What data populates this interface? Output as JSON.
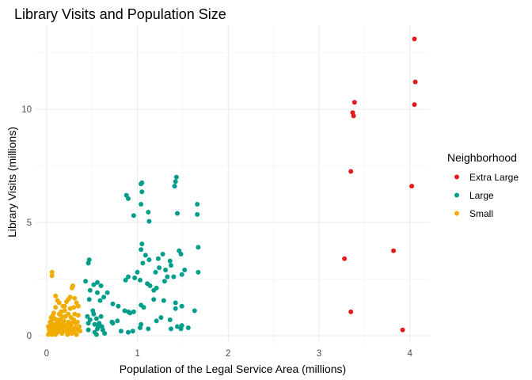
{
  "chart_data": {
    "type": "scatter",
    "title": "Library Visits and Population Size",
    "xlabel": "Population of the Legal Service Area (millions)",
    "ylabel": "Library Visits (millions)",
    "xlim": [
      -0.12,
      4.22
    ],
    "ylim": [
      -0.35,
      13.7
    ],
    "x_ticks": [
      0,
      1,
      2,
      3,
      4
    ],
    "x_tick_labels": [
      "0",
      "1",
      "2",
      "3",
      "4"
    ],
    "y_ticks": [
      0,
      5,
      10
    ],
    "y_tick_labels": [
      "0",
      "5",
      "10"
    ],
    "grid": true,
    "legend": {
      "title": "Neighborhood",
      "position": "right"
    },
    "series": [
      {
        "name": "Extra Large",
        "color": "#e41a1c",
        "points": [
          [
            4.05,
            13.1
          ],
          [
            4.06,
            11.2
          ],
          [
            4.05,
            10.2
          ],
          [
            3.39,
            10.3
          ],
          [
            3.37,
            9.85
          ],
          [
            3.38,
            9.7
          ],
          [
            3.35,
            7.25
          ],
          [
            4.02,
            6.6
          ],
          [
            3.28,
            3.4
          ],
          [
            3.82,
            3.75
          ],
          [
            3.35,
            1.05
          ],
          [
            3.92,
            0.25
          ]
        ]
      },
      {
        "name": "Large",
        "color": "#009e8a",
        "points": [
          [
            1.05,
            6.75
          ],
          [
            1.04,
            6.7
          ],
          [
            1.05,
            6.35
          ],
          [
            0.88,
            6.2
          ],
          [
            0.9,
            6.05
          ],
          [
            1.04,
            5.8
          ],
          [
            1.43,
            7.0
          ],
          [
            1.42,
            6.8
          ],
          [
            1.41,
            6.6
          ],
          [
            1.44,
            5.4
          ],
          [
            1.66,
            5.8
          ],
          [
            1.66,
            5.35
          ],
          [
            1.12,
            5.45
          ],
          [
            1.13,
            5.05
          ],
          [
            0.96,
            5.3
          ],
          [
            0.47,
            3.35
          ],
          [
            0.46,
            3.2
          ],
          [
            1.05,
            4.05
          ],
          [
            1.04,
            3.8
          ],
          [
            1.09,
            3.55
          ],
          [
            1.13,
            3.35
          ],
          [
            1.06,
            3.2
          ],
          [
            1.23,
            3.4
          ],
          [
            1.28,
            3.6
          ],
          [
            1.36,
            3.3
          ],
          [
            1.46,
            3.75
          ],
          [
            1.48,
            3.6
          ],
          [
            1.37,
            3.1
          ],
          [
            1.67,
            3.9
          ],
          [
            1.67,
            2.8
          ],
          [
            1.52,
            2.9
          ],
          [
            1.49,
            2.7
          ],
          [
            1.4,
            2.6
          ],
          [
            1.31,
            2.9
          ],
          [
            1.3,
            2.4
          ],
          [
            1.2,
            2.8
          ],
          [
            1.0,
            2.8
          ],
          [
            0.97,
            2.55
          ],
          [
            0.87,
            2.45
          ],
          [
            1.03,
            2.45
          ],
          [
            1.11,
            2.3
          ],
          [
            1.14,
            2.2
          ],
          [
            0.43,
            2.4
          ],
          [
            0.52,
            2.25
          ],
          [
            0.56,
            2.35
          ],
          [
            0.6,
            2.2
          ],
          [
            0.48,
            2.0
          ],
          [
            0.56,
            1.9
          ],
          [
            0.63,
            1.7
          ],
          [
            0.47,
            1.6
          ],
          [
            0.59,
            1.55
          ],
          [
            0.73,
            1.4
          ],
          [
            0.79,
            1.3
          ],
          [
            0.9,
            1.05
          ],
          [
            0.92,
            1.0
          ],
          [
            0.96,
            1.05
          ],
          [
            1.04,
            1.35
          ],
          [
            1.07,
            1.25
          ],
          [
            1.18,
            1.6
          ],
          [
            1.29,
            1.55
          ],
          [
            1.42,
            1.45
          ],
          [
            1.42,
            1.2
          ],
          [
            1.49,
            1.3
          ],
          [
            1.63,
            1.1
          ],
          [
            0.51,
            1.1
          ],
          [
            0.52,
            0.95
          ],
          [
            0.45,
            0.85
          ],
          [
            0.46,
            0.55
          ],
          [
            0.53,
            0.5
          ],
          [
            0.57,
            0.4
          ],
          [
            0.61,
            0.4
          ],
          [
            0.46,
            0.25
          ],
          [
            0.56,
            0.3
          ],
          [
            0.62,
            0.25
          ],
          [
            0.72,
            0.6
          ],
          [
            0.78,
            0.65
          ],
          [
            0.82,
            0.2
          ],
          [
            0.9,
            0.15
          ],
          [
            0.95,
            0.2
          ],
          [
            1.04,
            0.5
          ],
          [
            1.03,
            0.35
          ],
          [
            1.12,
            0.3
          ],
          [
            1.21,
            0.65
          ],
          [
            1.26,
            0.8
          ],
          [
            1.36,
            0.7
          ],
          [
            1.44,
            0.4
          ],
          [
            1.49,
            0.45
          ],
          [
            1.48,
            0.3
          ],
          [
            1.37,
            0.3
          ],
          [
            1.56,
            0.35
          ],
          [
            0.53,
            0.15
          ],
          [
            0.58,
            0.55
          ],
          [
            0.48,
            0.7
          ],
          [
            0.55,
            0.75
          ],
          [
            0.6,
            0.85
          ],
          [
            0.67,
            1.9
          ],
          [
            1.21,
            2.1
          ],
          [
            1.33,
            2.6
          ],
          [
            1.24,
            3.0
          ],
          [
            1.18,
            2.0
          ],
          [
            0.9,
            2.6
          ],
          [
            0.86,
            1.1
          ],
          [
            0.73,
            0.55
          ],
          [
            0.64,
            0.1
          ],
          [
            0.55,
            0.05
          ]
        ]
      },
      {
        "name": "Small",
        "color": "#f0ac00",
        "points": [
          [
            0.06,
            2.8
          ],
          [
            0.06,
            2.65
          ],
          [
            0.29,
            2.2
          ],
          [
            0.28,
            2.1
          ],
          [
            0.1,
            1.75
          ],
          [
            0.12,
            1.55
          ],
          [
            0.18,
            1.3
          ],
          [
            0.22,
            1.5
          ],
          [
            0.26,
            1.7
          ],
          [
            0.31,
            1.65
          ],
          [
            0.33,
            1.45
          ],
          [
            0.26,
            1.2
          ],
          [
            0.2,
            1.1
          ],
          [
            0.14,
            0.95
          ],
          [
            0.08,
            1.0
          ],
          [
            0.05,
            0.8
          ],
          [
            0.04,
            0.6
          ],
          [
            0.07,
            0.5
          ],
          [
            0.09,
            0.75
          ],
          [
            0.11,
            0.55
          ],
          [
            0.13,
            0.4
          ],
          [
            0.15,
            0.7
          ],
          [
            0.16,
            0.3
          ],
          [
            0.18,
            0.5
          ],
          [
            0.19,
            0.2
          ],
          [
            0.21,
            0.85
          ],
          [
            0.22,
            0.35
          ],
          [
            0.24,
            0.6
          ],
          [
            0.25,
            0.15
          ],
          [
            0.27,
            0.45
          ],
          [
            0.29,
            0.3
          ],
          [
            0.3,
            0.7
          ],
          [
            0.32,
            0.55
          ],
          [
            0.34,
            0.25
          ],
          [
            0.35,
            0.9
          ],
          [
            0.36,
            0.4
          ],
          [
            0.33,
            0.05
          ],
          [
            0.28,
            0.1
          ],
          [
            0.23,
            0.05
          ],
          [
            0.17,
            0.1
          ],
          [
            0.12,
            0.15
          ],
          [
            0.08,
            0.2
          ],
          [
            0.05,
            0.3
          ],
          [
            0.03,
            0.1
          ],
          [
            0.02,
            0.4
          ],
          [
            0.04,
            0.15
          ],
          [
            0.06,
            0.05
          ],
          [
            0.1,
            0.05
          ],
          [
            0.14,
            0.2
          ],
          [
            0.19,
            0.65
          ],
          [
            0.24,
            0.95
          ],
          [
            0.27,
            0.8
          ],
          [
            0.31,
            0.95
          ],
          [
            0.2,
            1.3
          ],
          [
            0.16,
            1.05
          ],
          [
            0.1,
            1.25
          ],
          [
            0.07,
            0.9
          ],
          [
            0.12,
            0.7
          ],
          [
            0.15,
            0.5
          ],
          [
            0.21,
            0.45
          ],
          [
            0.26,
            0.3
          ],
          [
            0.3,
            0.15
          ],
          [
            0.34,
            0.6
          ],
          [
            0.37,
            0.2
          ],
          [
            0.09,
            0.35
          ],
          [
            0.11,
            0.25
          ],
          [
            0.13,
            0.6
          ],
          [
            0.17,
            0.85
          ],
          [
            0.18,
            0.4
          ],
          [
            0.22,
            0.2
          ],
          [
            0.25,
            0.5
          ],
          [
            0.29,
            0.6
          ],
          [
            0.32,
            0.35
          ],
          [
            0.06,
            0.7
          ],
          [
            0.03,
            0.25
          ],
          [
            0.02,
            0.05
          ],
          [
            0.14,
            1.45
          ],
          [
            0.24,
            1.6
          ],
          [
            0.3,
            1.25
          ],
          [
            0.35,
            1.3
          ],
          [
            0.04,
            0.45
          ],
          [
            0.07,
            0.15
          ]
        ]
      }
    ]
  }
}
